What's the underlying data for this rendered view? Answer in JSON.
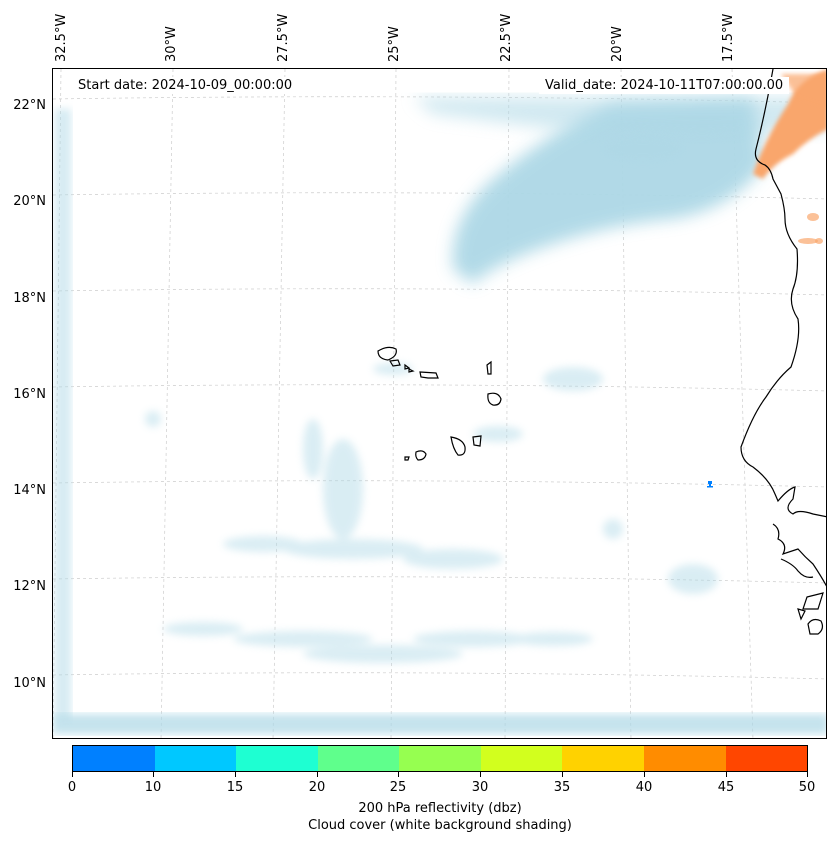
{
  "header": {
    "start_date": "Start date: 2024-10-09_00:00:00",
    "valid_date": "Valid_date: 2024-10-11T07:00:00.00"
  },
  "axes": {
    "lon_labels": [
      "32.5°W",
      "30°W",
      "27.5°W",
      "25°W",
      "22.5°W",
      "20°W",
      "17.5°W"
    ],
    "lat_labels": [
      "22°N",
      "20°N",
      "18°N",
      "16°N",
      "14°N",
      "12°N",
      "10°N"
    ]
  },
  "colorbar": {
    "ticks": [
      "0",
      "10",
      "15",
      "20",
      "25",
      "30",
      "35",
      "40",
      "45",
      "50"
    ],
    "colors": [
      "#0080ff",
      "#00c8ff",
      "#1effd2",
      "#5fff8c",
      "#96ff50",
      "#d2ff1e",
      "#ffd200",
      "#ff8c00",
      "#ff4600"
    ],
    "title_line1": "200 hPa reflectivity (dbz)",
    "title_line2": "Cloud cover (white background shading)"
  },
  "map": {
    "cloud_color": "#add8e6",
    "reflectivity_color": "#f9a66c",
    "coast_color": "#000000"
  }
}
